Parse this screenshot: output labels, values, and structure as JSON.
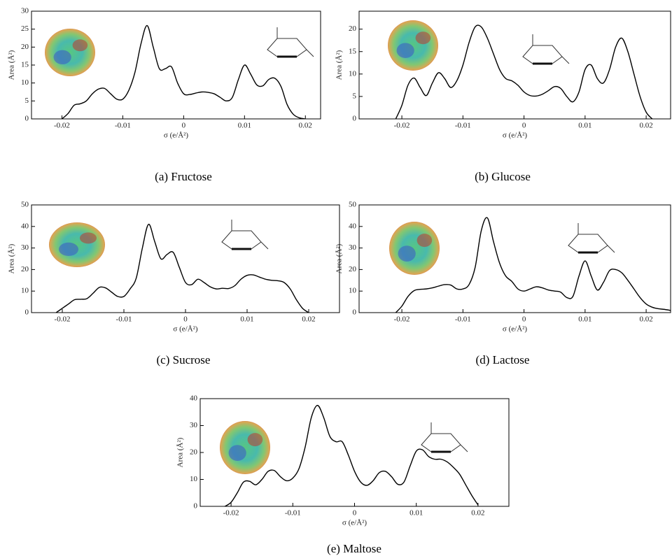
{
  "chart_data": [
    {
      "type": "line",
      "caption": "(a) Fructose",
      "xlabel": "σ (e/Å²)",
      "ylabel": "Area (Å²)",
      "color": "#000000",
      "xlim": [
        -0.025,
        0.0225
      ],
      "ylim": [
        0,
        30
      ],
      "xticks": [
        -0.02,
        -0.01,
        0,
        0.01,
        0.02
      ],
      "yticks": [
        0,
        5,
        10,
        15,
        20,
        25,
        30
      ],
      "x": [
        -0.02,
        -0.019,
        -0.018,
        -0.017,
        -0.016,
        -0.015,
        -0.014,
        -0.013,
        -0.012,
        -0.011,
        -0.01,
        -0.009,
        -0.008,
        -0.007,
        -0.006,
        -0.005,
        -0.004,
        -0.003,
        -0.002,
        -0.001,
        0,
        0.001,
        0.002,
        0.003,
        0.004,
        0.005,
        0.006,
        0.007,
        0.008,
        0.009,
        0.01,
        0.011,
        0.012,
        0.013,
        0.014,
        0.015,
        0.016,
        0.017,
        0.018,
        0.019,
        0.02
      ],
      "values": [
        0,
        1.5,
        3.8,
        4.2,
        5,
        7,
        8.3,
        8.5,
        7,
        5.5,
        5.5,
        8,
        13,
        21,
        26,
        20,
        14,
        14,
        14.5,
        10,
        7,
        6.8,
        7.2,
        7.5,
        7.4,
        7,
        6,
        5,
        6,
        11,
        15,
        12.5,
        9.5,
        9.2,
        11,
        11.3,
        9,
        4,
        1.3,
        0.3,
        0
      ]
    },
    {
      "type": "line",
      "caption": "(b) Glucose",
      "xlabel": "σ (e/Å²)",
      "ylabel": "Area (Å²)",
      "color": "#000000",
      "xlim": [
        -0.027,
        0.024
      ],
      "ylim": [
        0,
        24
      ],
      "xticks": [
        -0.02,
        -0.01,
        0,
        0.01,
        0.02
      ],
      "yticks": [
        0,
        5,
        10,
        15,
        20
      ],
      "x": [
        -0.021,
        -0.02,
        -0.019,
        -0.018,
        -0.017,
        -0.016,
        -0.015,
        -0.014,
        -0.013,
        -0.012,
        -0.011,
        -0.01,
        -0.009,
        -0.008,
        -0.007,
        -0.006,
        -0.005,
        -0.004,
        -0.003,
        -0.002,
        -0.001,
        0,
        0.001,
        0.002,
        0.003,
        0.004,
        0.005,
        0.006,
        0.007,
        0.008,
        0.009,
        0.01,
        0.011,
        0.012,
        0.013,
        0.014,
        0.015,
        0.016,
        0.017,
        0.018,
        0.019,
        0.02,
        0.021
      ],
      "values": [
        0,
        3,
        7.5,
        9.1,
        7,
        5.2,
        8,
        10.3,
        9,
        7,
        8.5,
        12,
        17,
        20.5,
        20.5,
        18,
        14.5,
        11,
        9,
        8.5,
        7.5,
        6,
        5.2,
        5.1,
        5.5,
        6.3,
        7.2,
        6.8,
        5,
        3.8,
        6,
        11,
        12,
        9,
        8,
        11,
        16,
        18,
        15,
        10,
        5,
        1.5,
        0
      ]
    },
    {
      "type": "line",
      "caption": "(c) Sucrose",
      "xlabel": "σ (e/Å²)",
      "ylabel": "Area (Å²)",
      "color": "#000000",
      "xlim": [
        -0.025,
        0.025
      ],
      "ylim": [
        0,
        50
      ],
      "xticks": [
        -0.02,
        -0.01,
        0,
        0.01,
        0.02
      ],
      "yticks": [
        0,
        10,
        20,
        30,
        40,
        50
      ],
      "x": [
        -0.021,
        -0.02,
        -0.019,
        -0.018,
        -0.017,
        -0.016,
        -0.015,
        -0.014,
        -0.013,
        -0.012,
        -0.011,
        -0.01,
        -0.009,
        -0.008,
        -0.007,
        -0.006,
        -0.005,
        -0.004,
        -0.003,
        -0.002,
        -0.001,
        0,
        0.001,
        0.002,
        0.003,
        0.004,
        0.005,
        0.006,
        0.007,
        0.008,
        0.009,
        0.01,
        0.011,
        0.012,
        0.013,
        0.014,
        0.015,
        0.016,
        0.017,
        0.018,
        0.019,
        0.02
      ],
      "values": [
        0,
        2,
        4,
        6,
        6.2,
        6.5,
        9,
        11.7,
        11.5,
        9.5,
        7.5,
        7.5,
        11,
        16,
        30,
        41,
        33,
        25,
        27,
        28,
        21,
        14,
        13,
        15.5,
        14,
        12,
        11,
        11.3,
        11.2,
        12.5,
        15.5,
        17.3,
        17.5,
        16.5,
        15.5,
        15,
        14.8,
        14,
        11,
        6,
        2,
        0
      ]
    },
    {
      "type": "line",
      "caption": "(d) Lactose",
      "xlabel": "σ (e/Å²)",
      "ylabel": "Area (Å²)",
      "color": "#000000",
      "xlim": [
        -0.027,
        0.024
      ],
      "ylim": [
        0,
        50
      ],
      "xticks": [
        -0.02,
        -0.01,
        0,
        0.01,
        0.02
      ],
      "yticks": [
        0,
        10,
        20,
        30,
        40,
        50
      ],
      "x": [
        -0.021,
        -0.02,
        -0.019,
        -0.018,
        -0.017,
        -0.016,
        -0.015,
        -0.014,
        -0.013,
        -0.012,
        -0.011,
        -0.01,
        -0.009,
        -0.008,
        -0.007,
        -0.006,
        -0.005,
        -0.004,
        -0.003,
        -0.002,
        -0.001,
        0,
        0.001,
        0.002,
        0.003,
        0.004,
        0.005,
        0.006,
        0.007,
        0.008,
        0.009,
        0.01,
        0.011,
        0.012,
        0.013,
        0.014,
        0.015,
        0.016,
        0.017,
        0.018,
        0.019,
        0.02,
        0.021,
        0.022,
        0.023,
        0.024
      ],
      "values": [
        0,
        3,
        7.5,
        10.2,
        10.8,
        11,
        11.5,
        12.3,
        13,
        12.8,
        11,
        11,
        13,
        21,
        38,
        44,
        33,
        23,
        17,
        14.5,
        11,
        10,
        11,
        12,
        11.5,
        10.5,
        10,
        9.5,
        7,
        7.5,
        17,
        24,
        17,
        10.5,
        14,
        19.5,
        20,
        18.5,
        15,
        11,
        7,
        4,
        2.5,
        1.8,
        1.5,
        1
      ]
    },
    {
      "type": "line",
      "caption": "(e) Maltose",
      "xlabel": "σ (e/Å²)",
      "ylabel": "Area (Å²)",
      "color": "#000000",
      "xlim": [
        -0.025,
        0.025
      ],
      "ylim": [
        0,
        40
      ],
      "xticks": [
        -0.02,
        -0.01,
        0,
        0.01,
        0.02
      ],
      "yticks": [
        0,
        10,
        20,
        30,
        40
      ],
      "x": [
        -0.021,
        -0.02,
        -0.019,
        -0.018,
        -0.017,
        -0.016,
        -0.015,
        -0.014,
        -0.013,
        -0.012,
        -0.011,
        -0.01,
        -0.009,
        -0.008,
        -0.007,
        -0.006,
        -0.005,
        -0.004,
        -0.003,
        -0.002,
        -0.001,
        0,
        0.001,
        0.002,
        0.003,
        0.004,
        0.005,
        0.006,
        0.007,
        0.008,
        0.009,
        0.01,
        0.011,
        0.012,
        0.013,
        0.014,
        0.015,
        0.016,
        0.017,
        0.018,
        0.019,
        0.02
      ],
      "values": [
        0,
        1.5,
        5,
        9,
        9.3,
        8,
        10,
        13,
        13.3,
        11,
        9.5,
        10.5,
        14,
        22,
        33,
        37.5,
        33,
        26,
        24,
        24,
        19,
        13,
        9,
        7.8,
        9.5,
        12.5,
        13,
        11,
        8.2,
        9,
        15,
        20.5,
        21,
        18.5,
        17.5,
        17.5,
        16.5,
        14.5,
        12,
        8,
        4,
        0.5
      ]
    }
  ]
}
